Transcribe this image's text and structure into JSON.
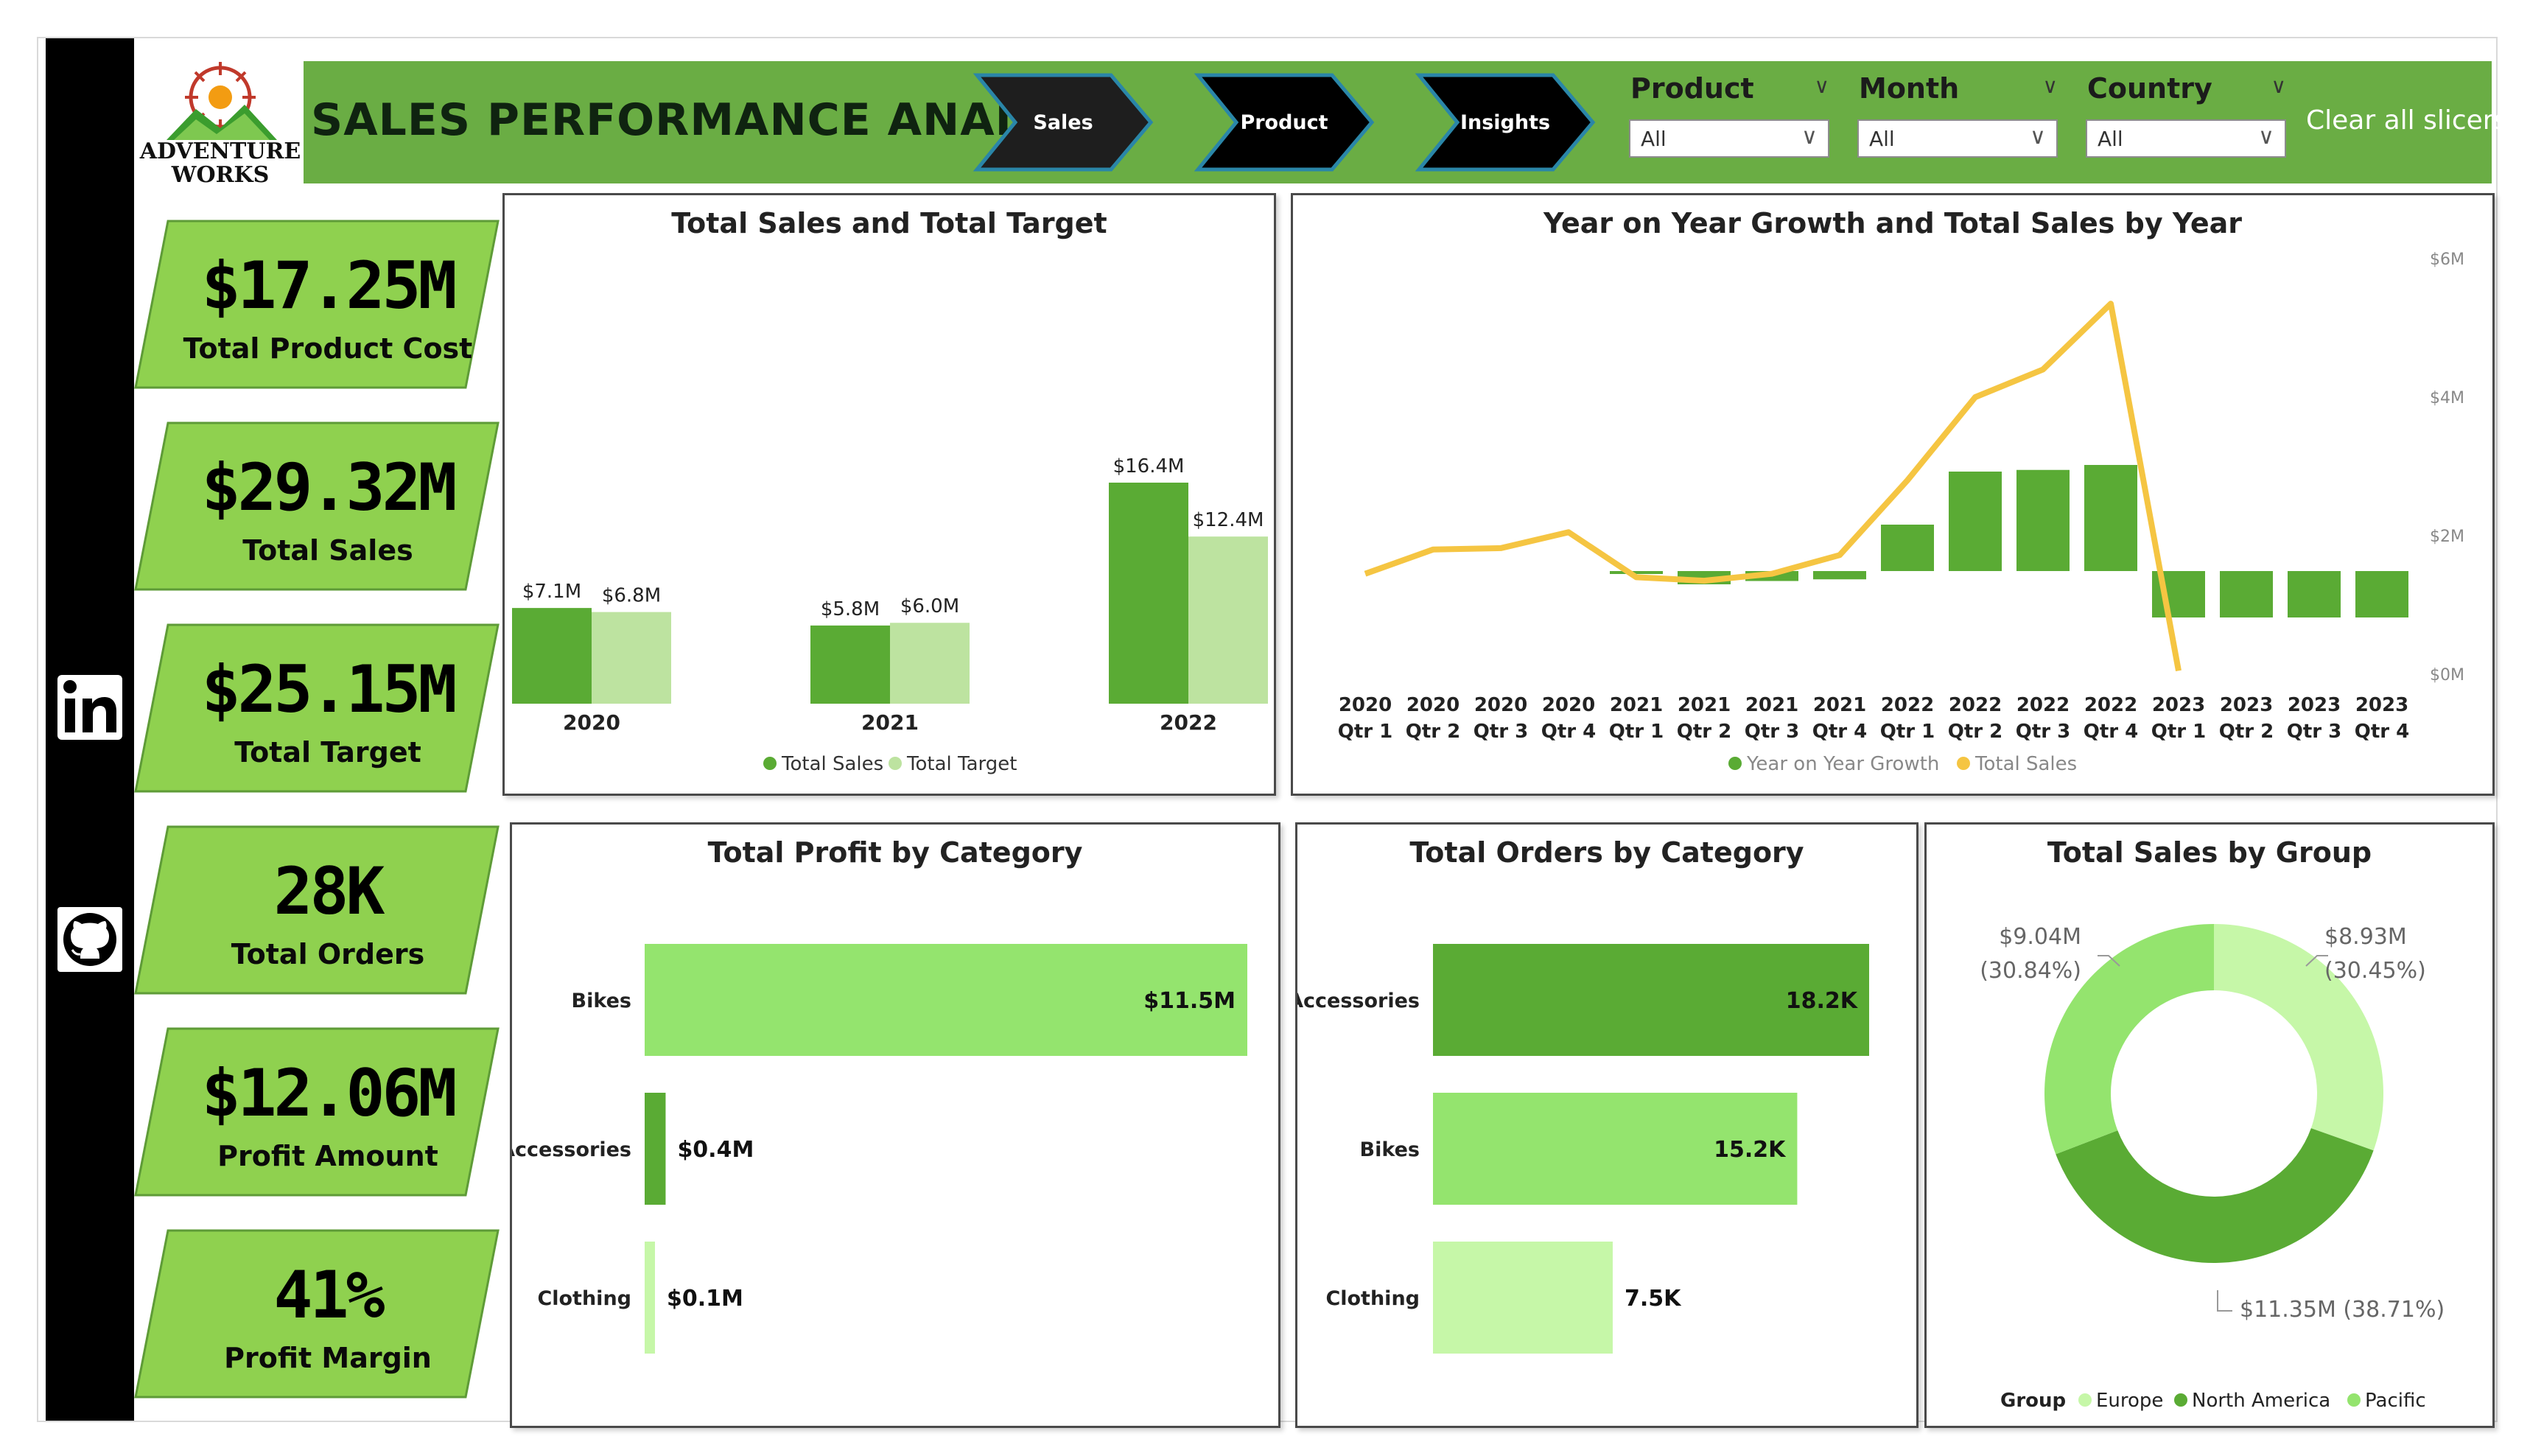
{
  "header": {
    "title": "SALES PERFORMANCE ANALYSIS",
    "logo_text_line1": "ADVENTURE",
    "logo_text_line2": "WORKS",
    "nav": [
      "Sales",
      "Product",
      "Insights"
    ],
    "slicers": [
      {
        "title": "Product",
        "value": "All"
      },
      {
        "title": "Month",
        "value": "All"
      },
      {
        "title": "Country",
        "value": "All"
      }
    ],
    "clear_label": "Clear all slicers"
  },
  "rail": {
    "icons": [
      "linkedin-icon",
      "github-icon"
    ]
  },
  "kpis": [
    {
      "value": "$17.25M",
      "label": "Total Product Cost"
    },
    {
      "value": "$29.32M",
      "label": "Total Sales"
    },
    {
      "value": "$25.15M",
      "label": "Total Target"
    },
    {
      "value": "28K",
      "label": "Total Orders"
    },
    {
      "value": "$12.06M",
      "label": "Profit Amount"
    },
    {
      "value": "41%",
      "label": "Profit Margin"
    }
  ],
  "colors": {
    "dark_green": "#5aab34",
    "mid_green": "#94e46e",
    "light_green": "#bde3a0",
    "pale_green": "#c6f7a8",
    "yellow": "#f5c542",
    "header_green": "#6aad44"
  },
  "chart_data": [
    {
      "type": "bar",
      "title": "Total Sales and Total Target",
      "categories": [
        "2020",
        "2021",
        "2022"
      ],
      "series": [
        {
          "name": "Total Sales",
          "values": [
            7.1,
            5.8,
            16.4
          ],
          "labels": [
            "$7.1M",
            "$5.8M",
            "$16.4M"
          ]
        },
        {
          "name": "Total Target",
          "values": [
            6.8,
            6.0,
            12.4
          ],
          "labels": [
            "$6.8M",
            "$6.0M",
            "$12.4M"
          ]
        }
      ],
      "legend": "bottom"
    },
    {
      "type": "bar",
      "title": "Year on Year Growth and Total Sales by Year",
      "categories": [
        [
          "2020",
          "Qtr 1"
        ],
        [
          "2020",
          "Qtr 2"
        ],
        [
          "2020",
          "Qtr 3"
        ],
        [
          "2020",
          "Qtr 4"
        ],
        [
          "2021",
          "Qtr 1"
        ],
        [
          "2021",
          "Qtr 2"
        ],
        [
          "2021",
          "Qtr 3"
        ],
        [
          "2021",
          "Qtr 4"
        ],
        [
          "2022",
          "Qtr 1"
        ],
        [
          "2022",
          "Qtr 2"
        ],
        [
          "2022",
          "Qtr 3"
        ],
        [
          "2022",
          "Qtr 4"
        ],
        [
          "2023",
          "Qtr 1"
        ],
        [
          "2023",
          "Qtr 2"
        ],
        [
          "2023",
          "Qtr 3"
        ],
        [
          "2023",
          "Qtr 4"
        ]
      ],
      "yoy_rel": [
        null,
        null,
        null,
        null,
        -0.05,
        -0.4,
        -0.3,
        -0.25,
        1.4,
        3.0,
        3.05,
        3.2,
        -1.4,
        -1.4,
        -1.4,
        -1.4
      ],
      "total_sales": [
        1.45,
        1.8,
        1.82,
        2.05,
        1.4,
        1.35,
        1.45,
        1.72,
        2.8,
        4.0,
        4.4,
        5.35,
        0.05,
        null,
        null,
        null
      ],
      "right_axis_ticks": [
        "$6M",
        "$4M",
        "$2M",
        "$0M"
      ],
      "y2lim": [
        0,
        6
      ],
      "series_names": [
        "Year on Year Growth",
        "Total Sales"
      ],
      "legend": "bottom"
    },
    {
      "type": "bar",
      "orientation": "horizontal",
      "title": "Total Profit by Category",
      "categories": [
        "Bikes",
        "Accessories",
        "Clothing"
      ],
      "values": [
        11.5,
        0.4,
        0.1
      ],
      "labels": [
        "$11.5M",
        "$0.4M",
        "$0.1M"
      ]
    },
    {
      "type": "bar",
      "orientation": "horizontal",
      "title": "Total Orders by Category",
      "categories": [
        "Accessories",
        "Bikes",
        "Clothing"
      ],
      "values": [
        18.2,
        15.2,
        7.5
      ],
      "labels": [
        "18.2K",
        "15.2K",
        "7.5K"
      ]
    },
    {
      "type": "pie",
      "title": "Total Sales by Group",
      "legend_title": "Group",
      "slices": [
        {
          "name": "Europe",
          "value": 8.93,
          "label1": "$8.93M",
          "label2": "(30.45%)"
        },
        {
          "name": "North America",
          "value": 11.35,
          "label1": "$11.35M (38.71%)"
        },
        {
          "name": "Pacific",
          "value": 9.04,
          "label1": "$9.04M",
          "label2": "(30.84%)"
        }
      ]
    }
  ]
}
